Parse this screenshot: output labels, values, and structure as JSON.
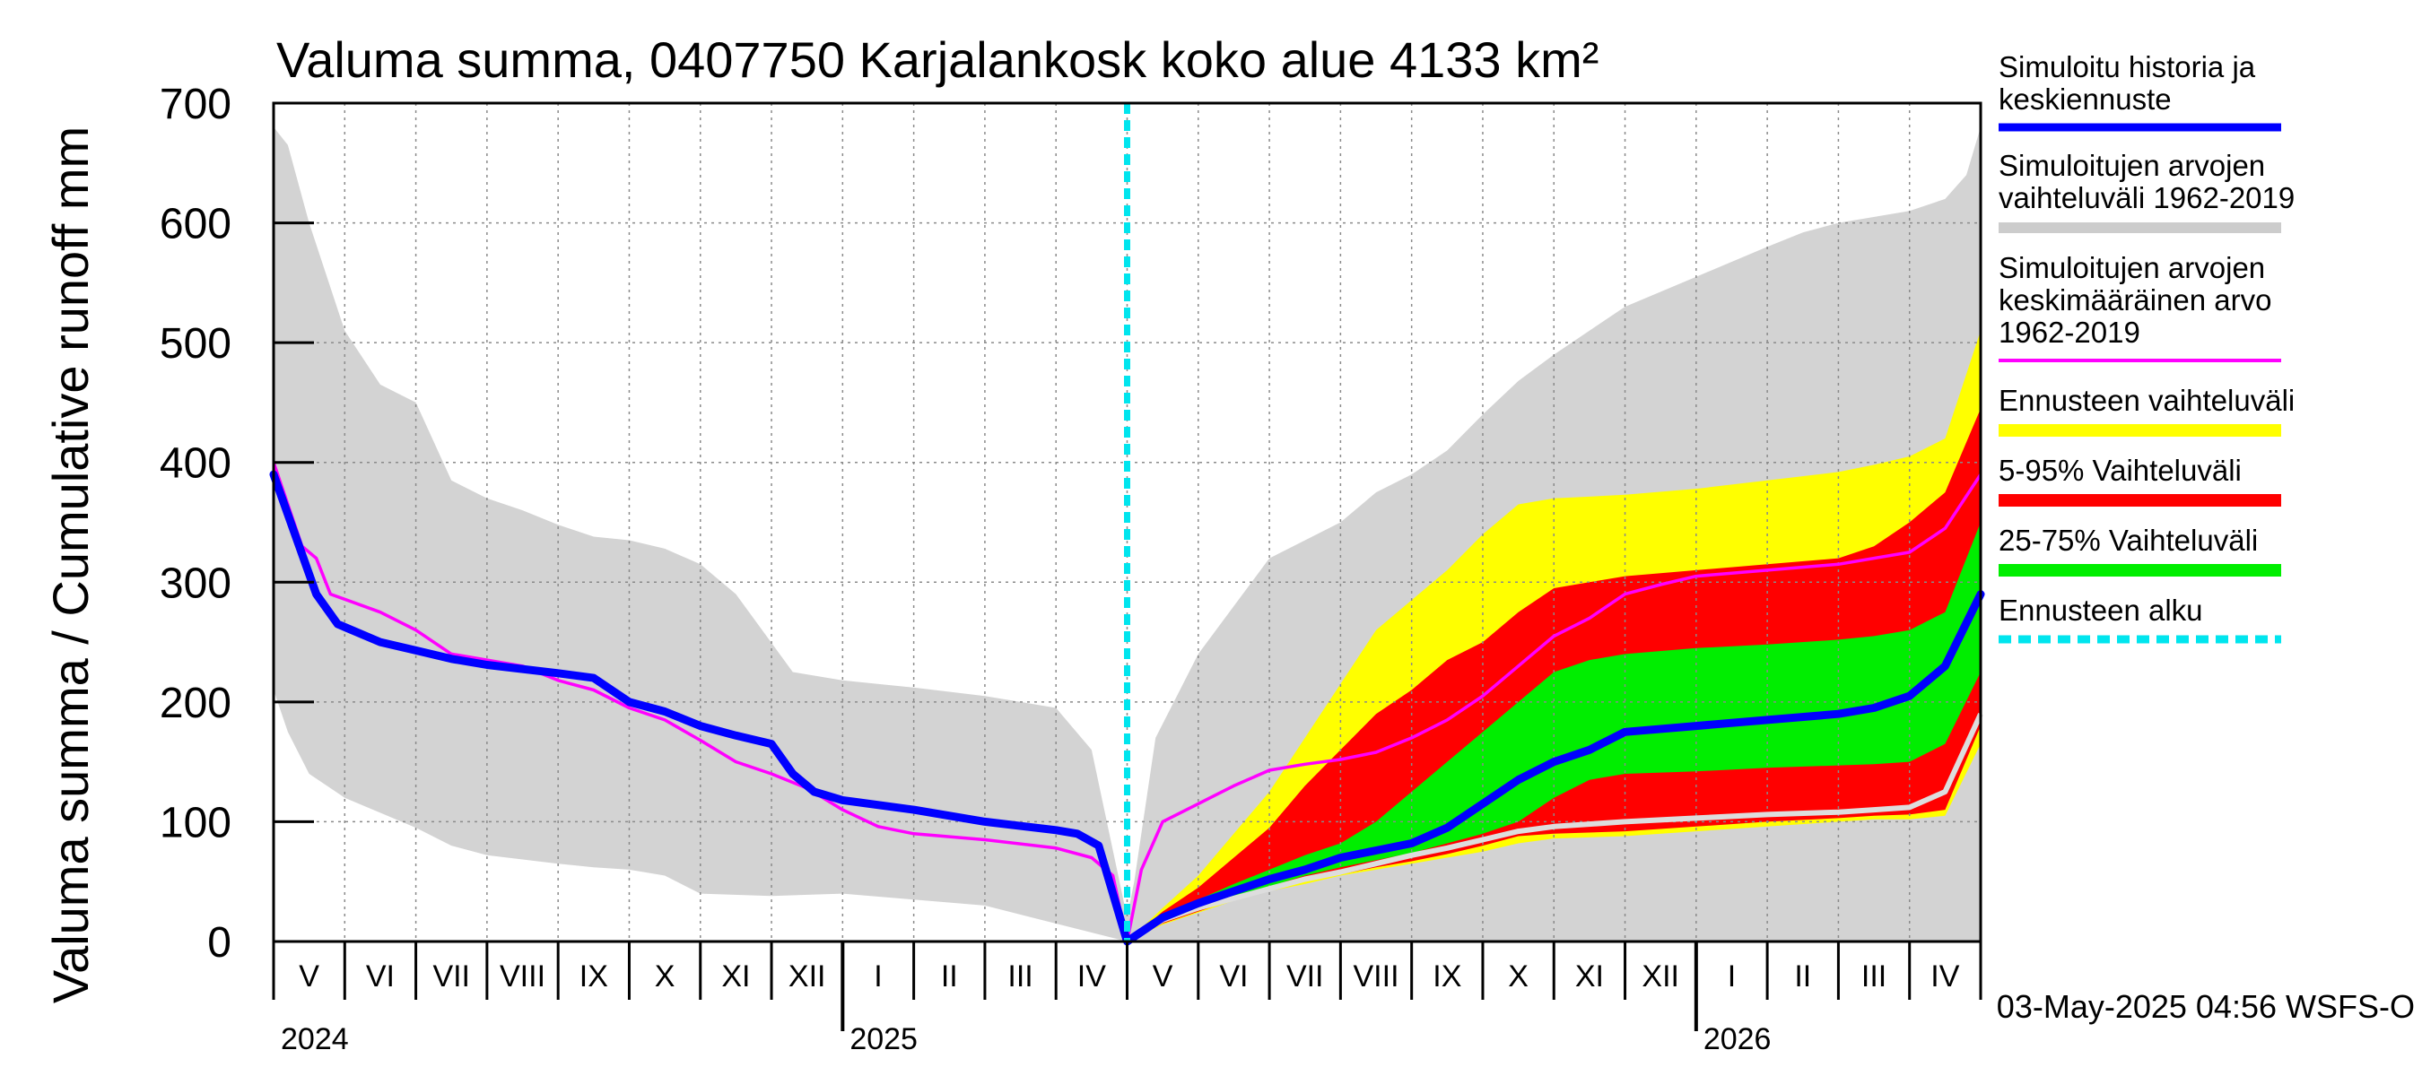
{
  "chart_data": {
    "type": "area",
    "title": "Valuma summa, 0407750 Karjalankosk koko alue 4133 km²",
    "ylabel": "Valuma summa / Cumulative runoff    mm",
    "xlabel": "",
    "ylim": [
      0,
      700
    ],
    "yticks": [
      0,
      100,
      200,
      300,
      400,
      500,
      600,
      700
    ],
    "grid": true,
    "months": [
      "V",
      "VI",
      "VII",
      "VIII",
      "IX",
      "X",
      "XI",
      "XII",
      "I",
      "II",
      "III",
      "IV",
      "V",
      "VI",
      "VII",
      "VIII",
      "IX",
      "X",
      "XI",
      "XII",
      "I",
      "II",
      "III",
      "IV"
    ],
    "years": [
      "2024",
      "2025",
      "2026"
    ],
    "forecast_start": "2025-05-03",
    "timestamp": "03-May-2025 04:56 WSFS-O",
    "x_unit": "months since 2024-05-01",
    "legend": [
      {
        "label": "Simuloitu historia ja keskiennuste",
        "color": "#0000ff"
      },
      {
        "label": "Simuloitujen arvojen vaihteluväli 1962-2019",
        "color": "#cccccc"
      },
      {
        "label": "Simuloitujen arvojen keskimääräinen arvo 1962-2019",
        "color": "#ff00ff"
      },
      {
        "label": "Ennusteen vaihteluväli",
        "color": "#ffff00"
      },
      {
        "label": "5-95% Vaihteluväli",
        "color": "#ff0000"
      },
      {
        "label": "25-75% Vaihteluväli",
        "color": "#00ee00"
      },
      {
        "label": "Ennusteen alku",
        "color": "#00e5ee"
      }
    ],
    "series": [
      {
        "name": "hist_range",
        "color": "#d3d3d3",
        "upper": [
          [
            0,
            680
          ],
          [
            0.2,
            665
          ],
          [
            0.5,
            600
          ],
          [
            1,
            510
          ],
          [
            1.5,
            465
          ],
          [
            2,
            450
          ],
          [
            2.5,
            385
          ],
          [
            3,
            370
          ],
          [
            3.5,
            360
          ],
          [
            4,
            348
          ],
          [
            4.5,
            338
          ],
          [
            5,
            335
          ],
          [
            5.5,
            328
          ],
          [
            6,
            315
          ],
          [
            6.5,
            290
          ],
          [
            7.3,
            225
          ],
          [
            8,
            218
          ],
          [
            9,
            212
          ],
          [
            10,
            205
          ],
          [
            11,
            195
          ],
          [
            11.5,
            160
          ],
          [
            12,
            20
          ],
          [
            12.1,
            50
          ],
          [
            12.4,
            170
          ],
          [
            13,
            240
          ],
          [
            13.5,
            280
          ],
          [
            14,
            320
          ],
          [
            15,
            350
          ],
          [
            15.5,
            375
          ],
          [
            16,
            390
          ],
          [
            16.5,
            410
          ],
          [
            17,
            440
          ],
          [
            17.5,
            468
          ],
          [
            18,
            490
          ],
          [
            18.5,
            510
          ],
          [
            19,
            530
          ],
          [
            20,
            555
          ],
          [
            21,
            580
          ],
          [
            21.5,
            592
          ],
          [
            22,
            600
          ],
          [
            23,
            610
          ],
          [
            23.5,
            620
          ],
          [
            23.8,
            640
          ],
          [
            24,
            680
          ]
        ],
        "lower": [
          [
            0,
            210
          ],
          [
            0.2,
            175
          ],
          [
            0.5,
            140
          ],
          [
            1,
            120
          ],
          [
            2,
            95
          ],
          [
            2.5,
            80
          ],
          [
            3,
            72
          ],
          [
            4,
            65
          ],
          [
            4.5,
            62
          ],
          [
            5,
            60
          ],
          [
            5.5,
            55
          ],
          [
            6,
            40
          ],
          [
            7,
            38
          ],
          [
            8,
            40
          ],
          [
            9,
            35
          ],
          [
            10,
            30
          ],
          [
            11,
            15
          ],
          [
            12,
            0
          ],
          [
            24,
            0
          ]
        ]
      },
      {
        "name": "forecast_range",
        "color": "#ffff00",
        "upper": [
          [
            12,
            0
          ],
          [
            12.5,
            28
          ],
          [
            13,
            55
          ],
          [
            13.5,
            90
          ],
          [
            14,
            125
          ],
          [
            14.5,
            170
          ],
          [
            15,
            215
          ],
          [
            15.5,
            260
          ],
          [
            16,
            285
          ],
          [
            16.5,
            310
          ],
          [
            17,
            340
          ],
          [
            17.5,
            365
          ],
          [
            18,
            370
          ],
          [
            19,
            373
          ],
          [
            20,
            378
          ],
          [
            21,
            385
          ],
          [
            22,
            392
          ],
          [
            22.5,
            398
          ],
          [
            23,
            405
          ],
          [
            23.5,
            420
          ],
          [
            24,
            510
          ]
        ],
        "lower": [
          [
            12,
            0
          ],
          [
            12.5,
            14
          ],
          [
            13,
            24
          ],
          [
            13.5,
            34
          ],
          [
            14,
            42
          ],
          [
            14.5,
            48
          ],
          [
            15,
            55
          ],
          [
            15.5,
            60
          ],
          [
            16,
            65
          ],
          [
            16.5,
            70
          ],
          [
            17,
            75
          ],
          [
            17.5,
            82
          ],
          [
            18,
            86
          ],
          [
            19,
            88
          ],
          [
            20,
            92
          ],
          [
            21,
            96
          ],
          [
            22,
            100
          ],
          [
            22.5,
            102
          ],
          [
            23,
            102
          ],
          [
            23.5,
            105
          ],
          [
            24,
            165
          ]
        ]
      },
      {
        "name": "p5_95",
        "color": "#ff0000",
        "upper": [
          [
            12,
            0
          ],
          [
            12.5,
            25
          ],
          [
            13,
            45
          ],
          [
            13.5,
            70
          ],
          [
            14,
            95
          ],
          [
            14.5,
            130
          ],
          [
            15,
            160
          ],
          [
            15.5,
            190
          ],
          [
            16,
            210
          ],
          [
            16.5,
            235
          ],
          [
            17,
            250
          ],
          [
            17.5,
            275
          ],
          [
            18,
            295
          ],
          [
            18.5,
            300
          ],
          [
            19,
            305
          ],
          [
            20,
            310
          ],
          [
            21,
            315
          ],
          [
            22,
            320
          ],
          [
            22.5,
            330
          ],
          [
            23,
            350
          ],
          [
            23.5,
            375
          ],
          [
            24,
            445
          ]
        ],
        "lower": [
          [
            12,
            0
          ],
          [
            12.5,
            15
          ],
          [
            13,
            25
          ],
          [
            13.5,
            35
          ],
          [
            14,
            42
          ],
          [
            14.5,
            50
          ],
          [
            15,
            56
          ],
          [
            15.5,
            62
          ],
          [
            16,
            67
          ],
          [
            16.5,
            73
          ],
          [
            17,
            80
          ],
          [
            17.5,
            88
          ],
          [
            18,
            90
          ],
          [
            19,
            92
          ],
          [
            20,
            96
          ],
          [
            21,
            100
          ],
          [
            22,
            103
          ],
          [
            22.5,
            105
          ],
          [
            23,
            106
          ],
          [
            23.5,
            110
          ],
          [
            24,
            180
          ]
        ]
      },
      {
        "name": "p25_75",
        "color": "#00ee00",
        "upper": [
          [
            12,
            0
          ],
          [
            12.5,
            20
          ],
          [
            13,
            35
          ],
          [
            13.5,
            48
          ],
          [
            14,
            60
          ],
          [
            14.5,
            72
          ],
          [
            15,
            82
          ],
          [
            15.5,
            100
          ],
          [
            16,
            125
          ],
          [
            16.5,
            150
          ],
          [
            17,
            175
          ],
          [
            17.5,
            200
          ],
          [
            18,
            225
          ],
          [
            18.5,
            235
          ],
          [
            19,
            240
          ],
          [
            20,
            245
          ],
          [
            21,
            248
          ],
          [
            22,
            252
          ],
          [
            22.5,
            255
          ],
          [
            23,
            260
          ],
          [
            23.5,
            275
          ],
          [
            24,
            350
          ]
        ],
        "lower": [
          [
            12,
            0
          ],
          [
            12.5,
            17
          ],
          [
            13,
            28
          ],
          [
            13.5,
            38
          ],
          [
            14,
            46
          ],
          [
            14.5,
            55
          ],
          [
            15,
            62
          ],
          [
            15.5,
            68
          ],
          [
            16,
            74
          ],
          [
            16.5,
            82
          ],
          [
            17,
            90
          ],
          [
            17.5,
            100
          ],
          [
            18,
            120
          ],
          [
            18.5,
            135
          ],
          [
            19,
            140
          ],
          [
            20,
            142
          ],
          [
            21,
            145
          ],
          [
            22,
            147
          ],
          [
            22.5,
            148
          ],
          [
            23,
            150
          ],
          [
            23.5,
            165
          ],
          [
            24,
            225
          ]
        ]
      },
      {
        "name": "sim_mean",
        "color": "#ff00ff",
        "points": [
          [
            0,
            400
          ],
          [
            0.4,
            330
          ],
          [
            0.6,
            320
          ],
          [
            0.8,
            290
          ],
          [
            1.5,
            275
          ],
          [
            2,
            260
          ],
          [
            2.5,
            240
          ],
          [
            3,
            235
          ],
          [
            3.5,
            230
          ],
          [
            4,
            218
          ],
          [
            4.5,
            210
          ],
          [
            5,
            195
          ],
          [
            5.5,
            185
          ],
          [
            6,
            168
          ],
          [
            6.5,
            150
          ],
          [
            7,
            140
          ],
          [
            7.5,
            128
          ],
          [
            8,
            110
          ],
          [
            8.5,
            96
          ],
          [
            9,
            90
          ],
          [
            10,
            85
          ],
          [
            11,
            78
          ],
          [
            11.5,
            70
          ],
          [
            11.8,
            55
          ],
          [
            12,
            0
          ],
          [
            12.2,
            60
          ],
          [
            12.5,
            100
          ],
          [
            13,
            115
          ],
          [
            13.5,
            130
          ],
          [
            14,
            143
          ],
          [
            14.5,
            148
          ],
          [
            15,
            152
          ],
          [
            15.5,
            158
          ],
          [
            16,
            170
          ],
          [
            16.5,
            185
          ],
          [
            17,
            205
          ],
          [
            17.5,
            230
          ],
          [
            18,
            255
          ],
          [
            18.5,
            270
          ],
          [
            19,
            290
          ],
          [
            19.5,
            298
          ],
          [
            20,
            305
          ],
          [
            21,
            310
          ],
          [
            22,
            315
          ],
          [
            23,
            325
          ],
          [
            23.5,
            345
          ],
          [
            24,
            390
          ]
        ]
      },
      {
        "name": "history_forecast",
        "color": "#0000ff",
        "points": [
          [
            0,
            390
          ],
          [
            0.3,
            340
          ],
          [
            0.6,
            290
          ],
          [
            0.9,
            265
          ],
          [
            1.5,
            250
          ],
          [
            2,
            243
          ],
          [
            2.5,
            236
          ],
          [
            3,
            231
          ],
          [
            4,
            224
          ],
          [
            4.5,
            220
          ],
          [
            5,
            200
          ],
          [
            5.5,
            192
          ],
          [
            6,
            180
          ],
          [
            6.5,
            172
          ],
          [
            7,
            165
          ],
          [
            7.3,
            140
          ],
          [
            7.6,
            125
          ],
          [
            8,
            118
          ],
          [
            9,
            110
          ],
          [
            10,
            100
          ],
          [
            11,
            93
          ],
          [
            11.3,
            90
          ],
          [
            11.6,
            80
          ],
          [
            12,
            0
          ],
          [
            12.5,
            20
          ],
          [
            13,
            32
          ],
          [
            13.5,
            42
          ],
          [
            14,
            52
          ],
          [
            14.5,
            60
          ],
          [
            15,
            70
          ],
          [
            15.5,
            76
          ],
          [
            16,
            82
          ],
          [
            16.5,
            95
          ],
          [
            17,
            115
          ],
          [
            17.5,
            135
          ],
          [
            18,
            150
          ],
          [
            18.5,
            160
          ],
          [
            19,
            175
          ],
          [
            20,
            180
          ],
          [
            21,
            185
          ],
          [
            22,
            190
          ],
          [
            22.5,
            195
          ],
          [
            23,
            205
          ],
          [
            23.5,
            230
          ],
          [
            24,
            290
          ]
        ]
      },
      {
        "name": "forecast_median",
        "color": "#dddddd",
        "points": [
          [
            12,
            0
          ],
          [
            12.5,
            18
          ],
          [
            13,
            28
          ],
          [
            13.5,
            36
          ],
          [
            14,
            44
          ],
          [
            14.5,
            52
          ],
          [
            15,
            58
          ],
          [
            15.5,
            65
          ],
          [
            16,
            72
          ],
          [
            16.5,
            78
          ],
          [
            17,
            85
          ],
          [
            17.5,
            92
          ],
          [
            18,
            96
          ],
          [
            19,
            100
          ],
          [
            20,
            103
          ],
          [
            21,
            106
          ],
          [
            22,
            108
          ],
          [
            22.5,
            110
          ],
          [
            23,
            112
          ],
          [
            23.5,
            125
          ],
          [
            24,
            190
          ]
        ]
      }
    ]
  }
}
